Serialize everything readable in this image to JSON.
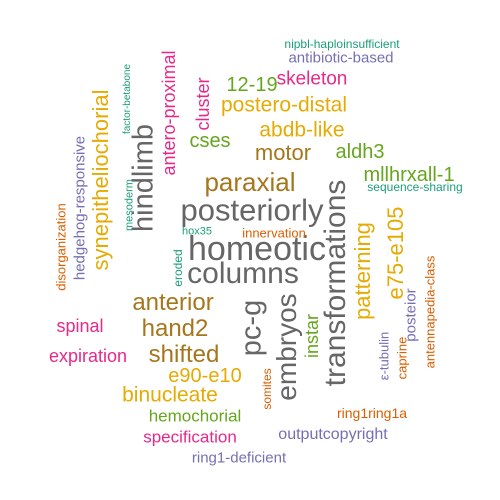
{
  "colors": {
    "green": "#1B9E77",
    "orange": "#D95F02",
    "purple": "#7570B3",
    "magenta": "#E7298A",
    "lime": "#66A61E",
    "gold": "#E6AB02",
    "brown": "#A6761D",
    "gray": "#666666"
  },
  "words": [
    {
      "text": "homeotic",
      "color": "gray",
      "rotated": false
    },
    {
      "text": "posteriorly",
      "color": "gray",
      "rotated": false
    },
    {
      "text": "columns",
      "color": "gray",
      "rotated": false
    },
    {
      "text": "transformations",
      "color": "gray",
      "rotated": true
    },
    {
      "text": "hindlimb",
      "color": "gray",
      "rotated": true
    },
    {
      "text": "pc-g",
      "color": "gray",
      "rotated": true
    },
    {
      "text": "embryos",
      "color": "gray",
      "rotated": true
    },
    {
      "text": "paraxial",
      "color": "brown",
      "rotated": false
    },
    {
      "text": "anterior",
      "color": "brown",
      "rotated": false
    },
    {
      "text": "hand2",
      "color": "brown",
      "rotated": false
    },
    {
      "text": "shifted",
      "color": "brown",
      "rotated": false
    },
    {
      "text": "motor",
      "color": "brown",
      "rotated": false
    },
    {
      "text": "synepitheliochorial",
      "color": "gold",
      "rotated": true
    },
    {
      "text": "postero-distal",
      "color": "gold",
      "rotated": false
    },
    {
      "text": "abdb-like",
      "color": "gold",
      "rotated": false
    },
    {
      "text": "patterning",
      "color": "gold",
      "rotated": true
    },
    {
      "text": "e75-e105",
      "color": "gold",
      "rotated": true
    },
    {
      "text": "binucleate",
      "color": "gold",
      "rotated": false
    },
    {
      "text": "e90-e10",
      "color": "gold",
      "rotated": false
    },
    {
      "text": "skeleton",
      "color": "magenta",
      "rotated": false
    },
    {
      "text": "antero-proximal",
      "color": "magenta",
      "rotated": true
    },
    {
      "text": "cluster",
      "color": "magenta",
      "rotated": true
    },
    {
      "text": "spinal",
      "color": "magenta",
      "rotated": false
    },
    {
      "text": "expiration",
      "color": "magenta",
      "rotated": false
    },
    {
      "text": "specification",
      "color": "magenta",
      "rotated": false
    },
    {
      "text": "12-19",
      "color": "lime",
      "rotated": false
    },
    {
      "text": "cses",
      "color": "lime",
      "rotated": false
    },
    {
      "text": "aldh3",
      "color": "lime",
      "rotated": false
    },
    {
      "text": "mllhrxall-1",
      "color": "lime",
      "rotated": false
    },
    {
      "text": "instar",
      "color": "lime",
      "rotated": true
    },
    {
      "text": "hemochorial",
      "color": "lime",
      "rotated": false
    },
    {
      "text": "nipbl-haploinsufficient",
      "color": "green",
      "rotated": false
    },
    {
      "text": "sequence-sharing",
      "color": "green",
      "rotated": false
    },
    {
      "text": "factor-betabone",
      "color": "green",
      "rotated": true
    },
    {
      "text": "mesoderm",
      "color": "green",
      "rotated": true
    },
    {
      "text": "hox35",
      "color": "green",
      "rotated": false
    },
    {
      "text": "eroded",
      "color": "green",
      "rotated": true
    },
    {
      "text": "antibiotic-based",
      "color": "purple",
      "rotated": false
    },
    {
      "text": "hedgehog-responsive",
      "color": "purple",
      "rotated": true
    },
    {
      "text": "posteior",
      "color": "purple",
      "rotated": true
    },
    {
      "text": "ε-tubulin",
      "color": "purple",
      "rotated": true
    },
    {
      "text": "outputcopyright",
      "color": "purple",
      "rotated": false
    },
    {
      "text": "ring1-deficient",
      "color": "purple",
      "rotated": false
    },
    {
      "text": "disorganization",
      "color": "orange",
      "rotated": true
    },
    {
      "text": "innervation",
      "color": "orange",
      "rotated": false
    },
    {
      "text": "antennapedia-class",
      "color": "orange",
      "rotated": true
    },
    {
      "text": "caprine",
      "color": "orange",
      "rotated": true
    },
    {
      "text": "somites",
      "color": "orange",
      "rotated": true
    },
    {
      "text": "ring1ring1a",
      "color": "orange",
      "rotated": false
    }
  ]
}
